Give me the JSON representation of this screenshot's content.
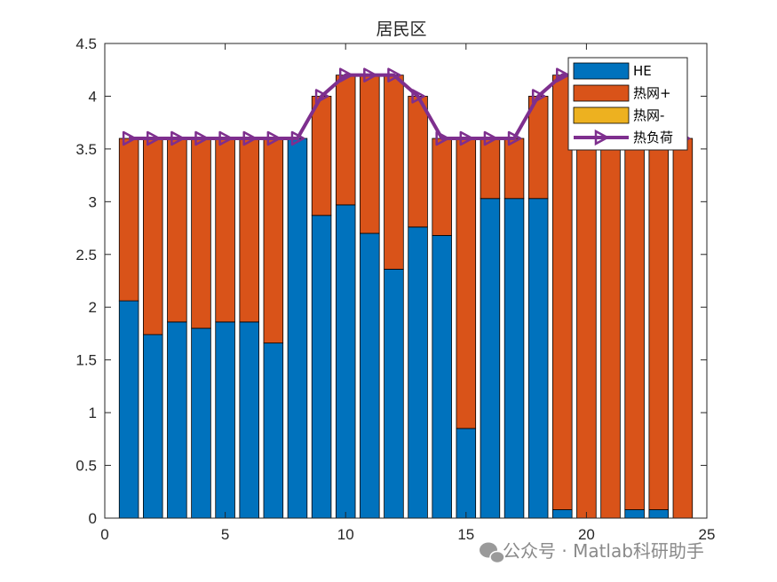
{
  "chart_data": {
    "type": "bar",
    "title": "居民区",
    "xlabel": "",
    "ylabel": "",
    "xlim": [
      0,
      25
    ],
    "ylim": [
      0,
      4.5
    ],
    "xticks": [
      0,
      5,
      10,
      15,
      20,
      25
    ],
    "yticks": [
      0,
      0.5,
      1,
      1.5,
      2,
      2.5,
      3,
      3.5,
      4,
      4.5
    ],
    "xtick_labels": [
      "0",
      "5",
      "10",
      "15",
      "20",
      "25"
    ],
    "ytick_labels": [
      "0",
      "0.5",
      "1",
      "1.5",
      "2",
      "2.5",
      "3",
      "3.5",
      "4",
      "4.5"
    ],
    "stacked": true,
    "grid": false,
    "legend_position": "top-right",
    "x": [
      1,
      2,
      3,
      4,
      5,
      6,
      7,
      8,
      9,
      10,
      11,
      12,
      13,
      14,
      15,
      16,
      17,
      18,
      19,
      20,
      21,
      22,
      23,
      24
    ],
    "series": [
      {
        "name": "HE",
        "kind": "bar",
        "color": "#0072BD",
        "values": [
          2.06,
          1.74,
          1.86,
          1.8,
          1.86,
          1.86,
          1.66,
          3.6,
          2.87,
          2.97,
          2.7,
          2.36,
          2.76,
          2.68,
          0.85,
          3.03,
          3.03,
          3.03,
          0.08,
          0.0,
          0.0,
          0.08,
          0.08,
          0.0
        ]
      },
      {
        "name": "热网+",
        "kind": "bar",
        "color": "#D95319",
        "values": [
          1.54,
          1.86,
          1.74,
          1.8,
          1.74,
          1.74,
          1.94,
          0.0,
          1.13,
          1.23,
          1.5,
          1.84,
          1.24,
          0.92,
          2.75,
          0.57,
          0.57,
          0.97,
          4.12,
          4.2,
          4.2,
          4.12,
          3.52,
          3.6
        ]
      },
      {
        "name": "热网-",
        "kind": "bar",
        "color": "#EDB120",
        "values": [
          0,
          0,
          0,
          0,
          0,
          0,
          0,
          0,
          0,
          0,
          0,
          0,
          0,
          0,
          0,
          0,
          0,
          0,
          0,
          0,
          0,
          0,
          0,
          0
        ]
      },
      {
        "name": "热负荷",
        "kind": "line",
        "marker": "triangle-right",
        "color": "#7E2F8E",
        "values": [
          3.6,
          3.6,
          3.6,
          3.6,
          3.6,
          3.6,
          3.6,
          3.6,
          4.0,
          4.2,
          4.2,
          4.2,
          4.0,
          3.6,
          3.6,
          3.6,
          3.6,
          4.0,
          4.2,
          4.2,
          4.2,
          4.2,
          3.6,
          3.6
        ]
      }
    ]
  },
  "watermark": {
    "text": "公众号 · Matlab科研助手",
    "icon": "wechat-icon"
  }
}
